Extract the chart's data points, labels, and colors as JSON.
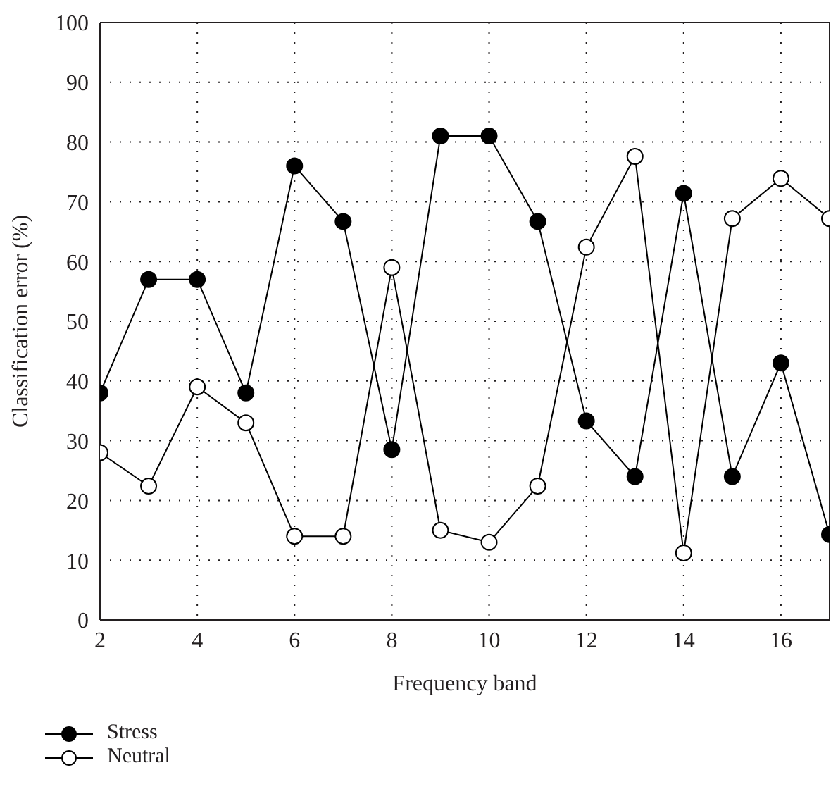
{
  "chart_data": {
    "type": "line",
    "xlabel": "Frequency band",
    "ylabel": "Classification error (%)",
    "x": [
      2,
      3,
      4,
      5,
      6,
      7,
      8,
      9,
      10,
      11,
      12,
      13,
      14,
      15,
      16,
      17
    ],
    "series": [
      {
        "name": "Stress",
        "color": "#000000",
        "values": [
          38,
          57,
          57,
          38,
          76,
          66.7,
          28.5,
          81,
          81,
          66.7,
          33.3,
          24,
          71.4,
          24,
          43,
          14.3
        ]
      },
      {
        "name": "Neutral",
        "color": "#000000",
        "values": [
          28,
          22.4,
          39,
          33,
          14,
          14,
          59,
          15,
          13,
          22.4,
          62.4,
          77.6,
          11.2,
          67.2,
          73.9,
          67.2
        ]
      }
    ],
    "xlim": [
      2,
      17
    ],
    "xticks": [
      2,
      4,
      6,
      8,
      10,
      12,
      14,
      16
    ],
    "ylim": [
      0,
      100
    ],
    "yticks": [
      0,
      10,
      20,
      30,
      40,
      50,
      60,
      70,
      80,
      90,
      100
    ],
    "grid": true,
    "legend": "bottom left",
    "marker": "circle",
    "line_style": "solid"
  }
}
